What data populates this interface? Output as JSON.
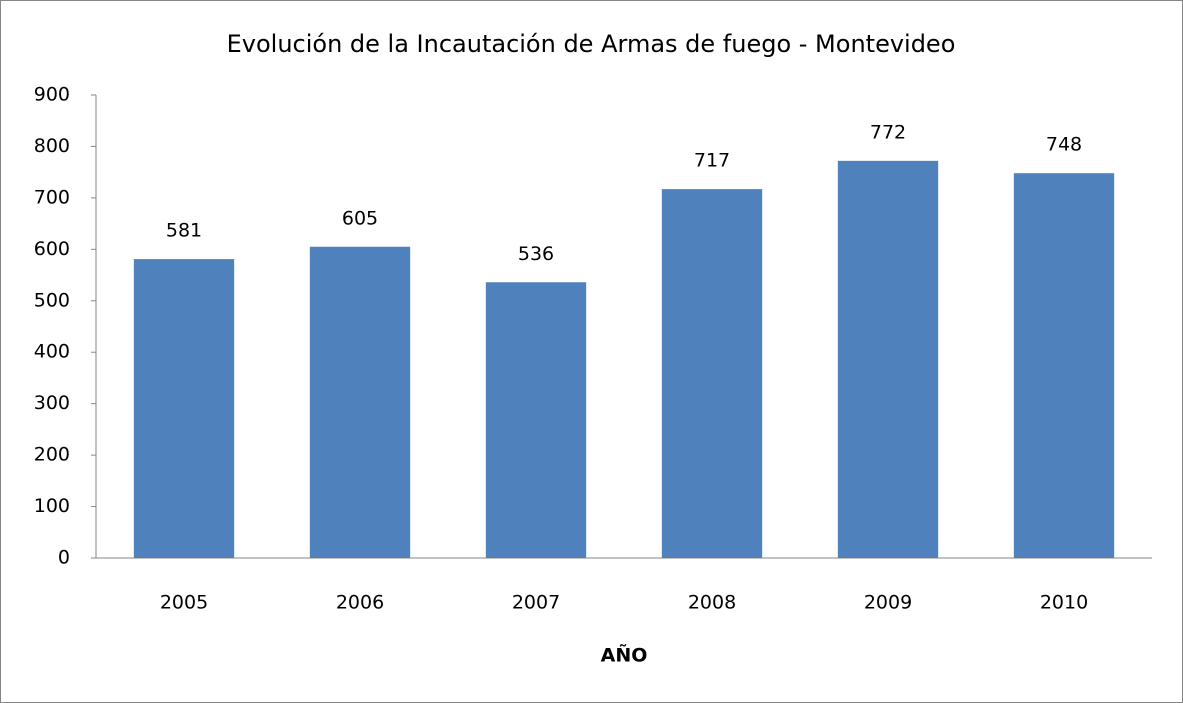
{
  "chart_data": {
    "type": "bar",
    "title": "Evolución de la Incautación de Armas de fuego - Montevideo",
    "x_label": "AÑO",
    "categories": [
      "2005",
      "2006",
      "2007",
      "2008",
      "2009",
      "2010"
    ],
    "values": [
      581,
      605,
      536,
      717,
      772,
      748
    ],
    "color": "#4f81bd",
    "ylim": [
      0,
      900
    ],
    "yticks": [
      0,
      100,
      200,
      300,
      400,
      500,
      600,
      700,
      800,
      900
    ],
    "grid": false
  }
}
